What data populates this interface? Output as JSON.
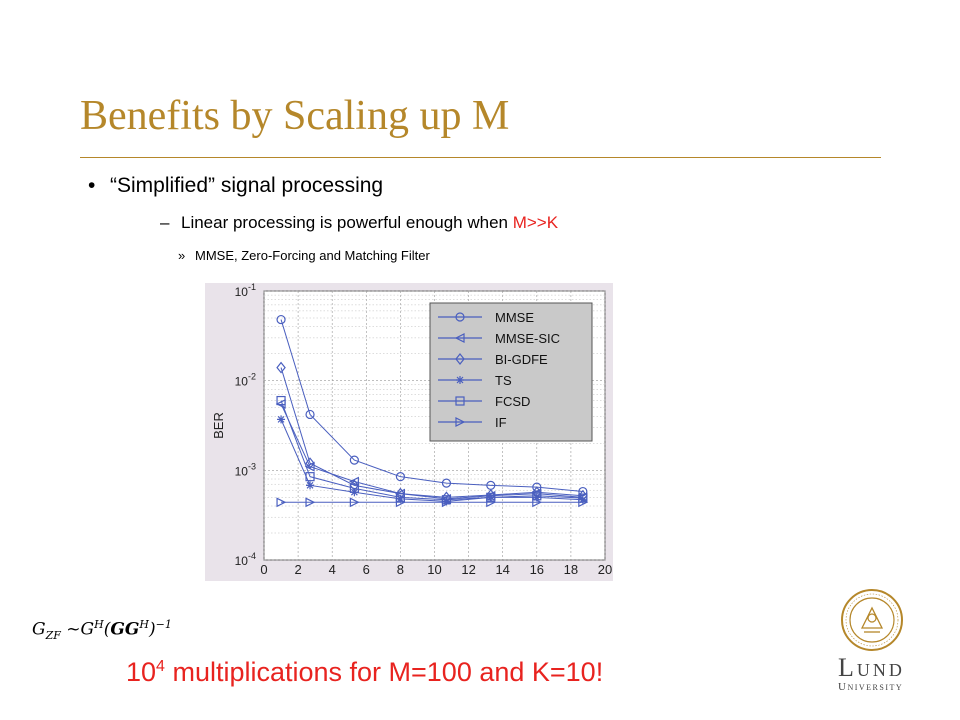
{
  "slide": {
    "title": "Benefits by Scaling up M",
    "bullet1": "“Simplified” signal processing",
    "bullet2_text": "Linear processing is powerful enough when ",
    "bullet2_highlight": "M>>K",
    "bullet3": "MMSE, Zero-Forcing and Matching Filter",
    "bullet1_marker": "•",
    "bullet2_marker": "–",
    "bullet3_marker": "»"
  },
  "formula": {
    "lhs": "G",
    "lhs_sub": "ZF",
    "mid": " ~G",
    "sup_h": "H",
    "bold": "GG",
    "sup_h2": "H",
    "exp": "−1"
  },
  "highlight": {
    "base": "10",
    "exp": "4",
    "text": " multiplications for M=100 and K=10!"
  },
  "logo": {
    "line1": "Lund",
    "line2": "University",
    "color": "#b5872a"
  },
  "colors": {
    "title": "#b5872a",
    "accent": "#e8231f",
    "series": "#4a5fbf"
  },
  "chart_data": {
    "type": "line",
    "ylabel": "BER",
    "xlabel": "",
    "yscale": "log",
    "ylim": [
      0.0001,
      0.1
    ],
    "xlim": [
      0,
      20
    ],
    "x_ticks": [
      "0",
      "2",
      "4",
      "6",
      "8",
      "10",
      "12",
      "14",
      "16",
      "18",
      "20"
    ],
    "y_ticks": [
      {
        "base": "10",
        "exp": "-1",
        "value": 0.1
      },
      {
        "base": "10",
        "exp": "-2",
        "value": 0.01
      },
      {
        "base": "10",
        "exp": "-3",
        "value": 0.001
      },
      {
        "base": "10",
        "exp": "-4",
        "value": 0.0001
      }
    ],
    "grid": true,
    "legend_position": "top-right",
    "x": [
      1,
      2.7,
      5.3,
      8,
      10.7,
      13.3,
      16,
      18.7
    ],
    "series": [
      {
        "name": "MMSE",
        "marker": "circle",
        "values": [
          0.048,
          0.0042,
          0.0013,
          0.00085,
          0.00072,
          0.00068,
          0.00065,
          0.00058
        ]
      },
      {
        "name": "MMSE-SIC",
        "marker": "triangle-left",
        "values": [
          0.0055,
          0.0011,
          0.00075,
          0.00055,
          0.00048,
          0.00052,
          0.00055,
          0.0005
        ]
      },
      {
        "name": "BI-GDFE",
        "marker": "diamond",
        "values": [
          0.014,
          0.0012,
          0.00068,
          0.00055,
          0.0005,
          0.00053,
          0.00057,
          0.00052
        ]
      },
      {
        "name": "TS",
        "marker": "star",
        "values": [
          0.0037,
          0.00068,
          0.00057,
          0.00048,
          0.00045,
          0.0005,
          0.0005,
          0.00047
        ]
      },
      {
        "name": "FCSD",
        "marker": "square",
        "values": [
          0.006,
          0.00085,
          0.00063,
          0.0005,
          0.00047,
          0.0005,
          0.00052,
          0.00049
        ]
      },
      {
        "name": "IF",
        "marker": "triangle-right",
        "values": [
          0.00044,
          0.00044,
          0.00044,
          0.00044,
          0.00044,
          0.00044,
          0.00044,
          0.00044
        ]
      }
    ]
  }
}
